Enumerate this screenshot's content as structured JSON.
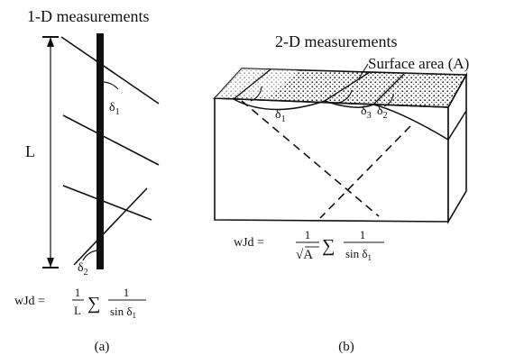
{
  "panel_a": {
    "title": "1-D measurements",
    "length_label": "L",
    "angle_top": "δ",
    "angle_top_sub": "1",
    "angle_bottom": "δ",
    "angle_bottom_sub": "2",
    "formula": {
      "lhs": "wJd =",
      "frac1_num": "1",
      "frac1_den": "L",
      "sum": "∑",
      "frac2_num": "1",
      "frac2_den": "sin δ",
      "frac2_den_sub": "1"
    },
    "caption": "(a)"
  },
  "panel_b": {
    "title": "2-D measurements",
    "surface_label": "Surface area (A)",
    "angle_1": "δ",
    "angle_1_sub": "1",
    "angle_3": "δ",
    "angle_3_sub": "3",
    "angle_2": "δ",
    "angle_2_sub": "2",
    "formula": {
      "lhs": "wJd =",
      "frac1_num": "1",
      "frac1_den_root": "√",
      "frac1_den": "A",
      "sum": "∑",
      "frac2_num": "1",
      "frac2_den": "sin δ",
      "frac2_den_sub": "1"
    },
    "caption": "(b)"
  }
}
